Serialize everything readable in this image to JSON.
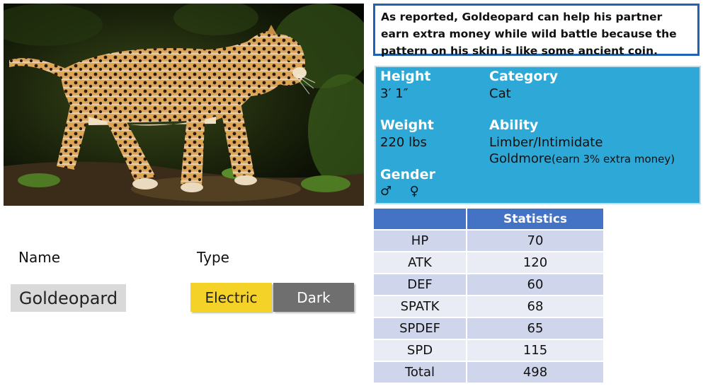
{
  "description": "As reported, Goldeopard can help his partner earn extra money while wild battle because the pattern on his skin is like some ancient coin.",
  "info": {
    "height_label": "Height",
    "height_value": "3′ 1″",
    "category_label": "Category",
    "category_value": "Cat",
    "weight_label": "Weight",
    "weight_value": "220 lbs",
    "ability_label": "Ability",
    "ability_line1": "Limber/Intimidate",
    "ability_line2_main": "Goldmore",
    "ability_line2_note": "(earn 3% extra money)",
    "gender_label": "Gender",
    "gender_male": "♂",
    "gender_female": "♀"
  },
  "name_label": "Name",
  "type_label": "Type",
  "name_value": "Goldeopard",
  "types": [
    "Electric",
    "Dark"
  ],
  "colors": {
    "electric": "#f5d228",
    "dark": "#6f6f6f",
    "info_bg": "#2ea8d6",
    "table_header": "#4472c4"
  },
  "stats": {
    "header": "Statistics",
    "rows": [
      {
        "label": "HP",
        "value": "70"
      },
      {
        "label": "ATK",
        "value": "120"
      },
      {
        "label": "DEF",
        "value": "60"
      },
      {
        "label": "SPATK",
        "value": "68"
      },
      {
        "label": "SPDEF",
        "value": "65"
      },
      {
        "label": "SPD",
        "value": "115"
      },
      {
        "label": "Total",
        "value": "498"
      }
    ]
  }
}
